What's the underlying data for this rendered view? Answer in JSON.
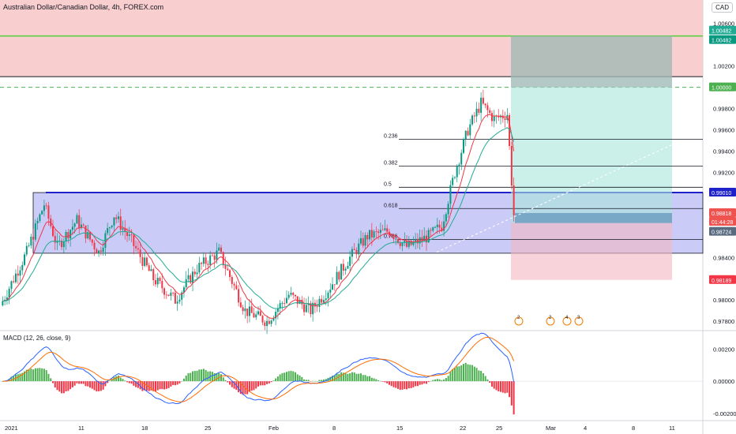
{
  "header": {
    "title": "Australian Dollar/Canadian Dollar, 4h, FOREX.com",
    "currency": "CAD",
    "macd_label": "MACD (12, 26, close, 9)"
  },
  "chart_data": {
    "type": "candlestick",
    "symbol": "AUDCAD",
    "timeframe": "4h",
    "price_ticks": [
      "1.00600",
      "1.00200",
      "0.99800",
      "0.99600",
      "0.99400",
      "0.99200",
      "0.98400",
      "0.98000",
      "0.97800"
    ],
    "price_tick_values": [
      1.006,
      1.002,
      0.998,
      0.996,
      0.994,
      0.992,
      0.984,
      0.98,
      0.978
    ],
    "y_range": [
      0.9772,
      1.0082
    ],
    "x_ticks": [
      "2021",
      "11",
      "18",
      "25",
      "Feb",
      "8",
      "15",
      "22",
      "25",
      "Mar",
      "4",
      "8",
      "11"
    ],
    "price_labels": [
      {
        "text": "1.00482",
        "color": "#22ab94"
      },
      {
        "text": "1.00482",
        "color": "#089981"
      },
      {
        "text": "1.00000",
        "color": "#4caf50"
      },
      {
        "text": "0.99010",
        "color": "#1e22c8"
      },
      {
        "text": "0.98818",
        "color": "#ef5350"
      },
      {
        "text": "01:44:28",
        "color": "#ef5350"
      },
      {
        "text": "0.98724",
        "color": "#5a6b80"
      },
      {
        "text": "0.98189",
        "color": "#f23645"
      }
    ],
    "fib_levels": [
      {
        "label": "0.236",
        "price": 0.9951
      },
      {
        "label": "0.382",
        "price": 0.9926
      },
      {
        "label": "0.5",
        "price": 0.9906
      },
      {
        "label": "0.618",
        "price": 0.9886
      },
      {
        "label": "0.786",
        "price": 0.9857
      }
    ],
    "levels": {
      "resistance_zone": [
        1.001,
        1.0082
      ],
      "green_line": 1.00482,
      "dashed_line": 1.0,
      "blue_line": 0.9901,
      "demand_zone": [
        0.9844,
        0.9901
      ],
      "entry": 0.98724,
      "stop": 0.98189
    },
    "macd_ticks": [
      "0.00200",
      "0.00000",
      "-0.00200"
    ],
    "macd_tick_values": [
      0.002,
      0.0,
      -0.002
    ],
    "macd_range": [
      -0.0024,
      0.0031
    ],
    "colors": {
      "up": "#089981",
      "down": "#f23645",
      "ema_fast": "#f23645",
      "ema_slow": "#22ab94",
      "macd": "#2962ff",
      "signal": "#ff6d00",
      "hist_up": "#4caf50",
      "hist_down": "#f23645"
    }
  }
}
